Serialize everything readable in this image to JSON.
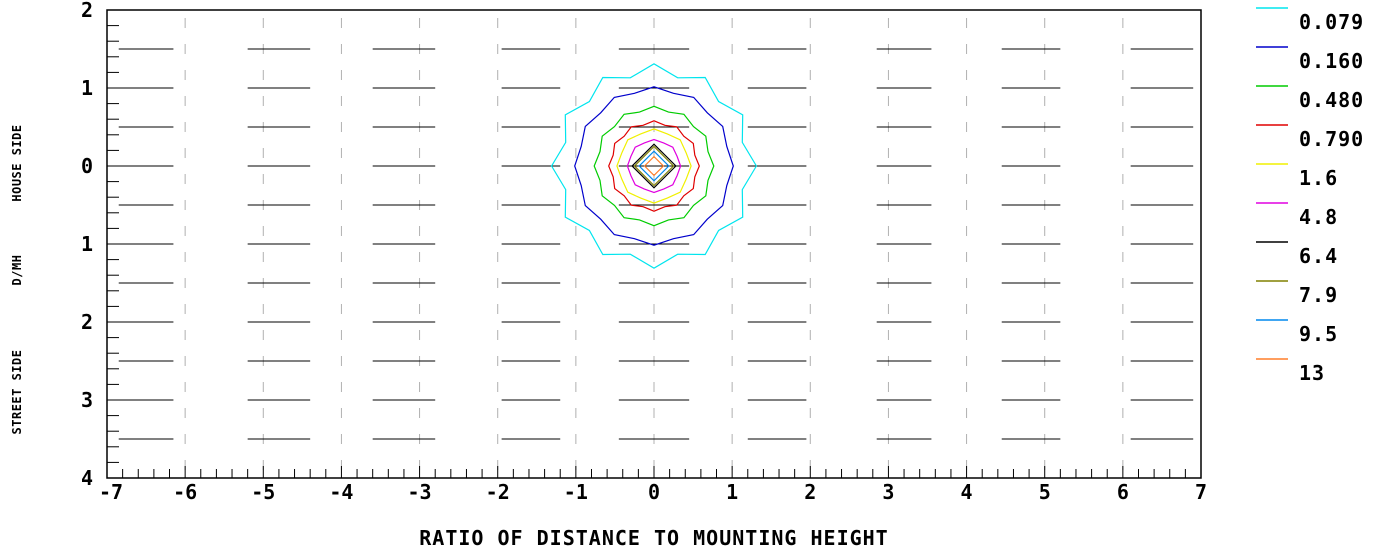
{
  "chart_data": {
    "type": "contour",
    "xlabel": "RATIO OF DISTANCE TO MOUNTING HEIGHT",
    "ylabel_parts": [
      "STREET SIDE",
      "D/MH",
      "HOUSE SIDE"
    ],
    "xlim": [
      -7,
      7
    ],
    "ylim": [
      -2,
      4
    ],
    "x_ticks": [
      "-7",
      "-6",
      "-5",
      "-4",
      "-3",
      "-2",
      "-1",
      "0",
      "1",
      "2",
      "3",
      "4",
      "5",
      "6",
      "7"
    ],
    "y_ticks": [
      {
        "value": -2,
        "label": "2"
      },
      {
        "value": -1,
        "label": "1"
      },
      {
        "value": 0,
        "label": "0"
      },
      {
        "value": 1,
        "label": "1"
      },
      {
        "value": 2,
        "label": "2"
      },
      {
        "value": 3,
        "label": "3"
      },
      {
        "value": 4,
        "label": "4"
      }
    ],
    "grid": "vertical dashed",
    "legend_position": "right",
    "lane_rows": [
      -1.5,
      -1,
      -0.5,
      0,
      0.5,
      1,
      1.5,
      2,
      2.5,
      3,
      3.5
    ],
    "lane_segments": [
      [
        -6.85,
        -6.15
      ],
      [
        -5.2,
        -4.4
      ],
      [
        -3.6,
        -2.8
      ],
      [
        -1.95,
        -1.2
      ],
      [
        -0.45,
        0.45
      ],
      [
        1.2,
        1.95
      ],
      [
        2.85,
        3.55
      ],
      [
        4.45,
        5.2
      ],
      [
        6.1,
        6.9
      ]
    ],
    "series": [
      {
        "name": "0.079",
        "color": "#00e5ee",
        "radius": 1.24,
        "ripple": 0.07
      },
      {
        "name": "0.160",
        "color": "#0000cc",
        "radius": 0.99,
        "ripple": 0.025
      },
      {
        "name": "0.480",
        "color": "#00cc00",
        "radius": 0.74,
        "ripple": 0.025
      },
      {
        "name": "0.790",
        "color": "#e00000",
        "radius": 0.56,
        "ripple": 0.02
      },
      {
        "name": "1.6",
        "color": "#f0f000",
        "radius": 0.46,
        "ripple": 0.015
      },
      {
        "name": "4.8",
        "color": "#e000e0",
        "radius": 0.33,
        "ripple": 0.01
      },
      {
        "name": "6.4",
        "color": "#000000",
        "radius": 0.28,
        "ripple": 0.0
      },
      {
        "name": "7.9",
        "color": "#808000",
        "radius": 0.25,
        "ripple": 0.0
      },
      {
        "name": "9.5",
        "color": "#0088ee",
        "radius": 0.19,
        "ripple": 0.0
      },
      {
        "name": "13",
        "color": "#ff7f2a",
        "radius": 0.12,
        "ripple": 0.0
      }
    ]
  }
}
